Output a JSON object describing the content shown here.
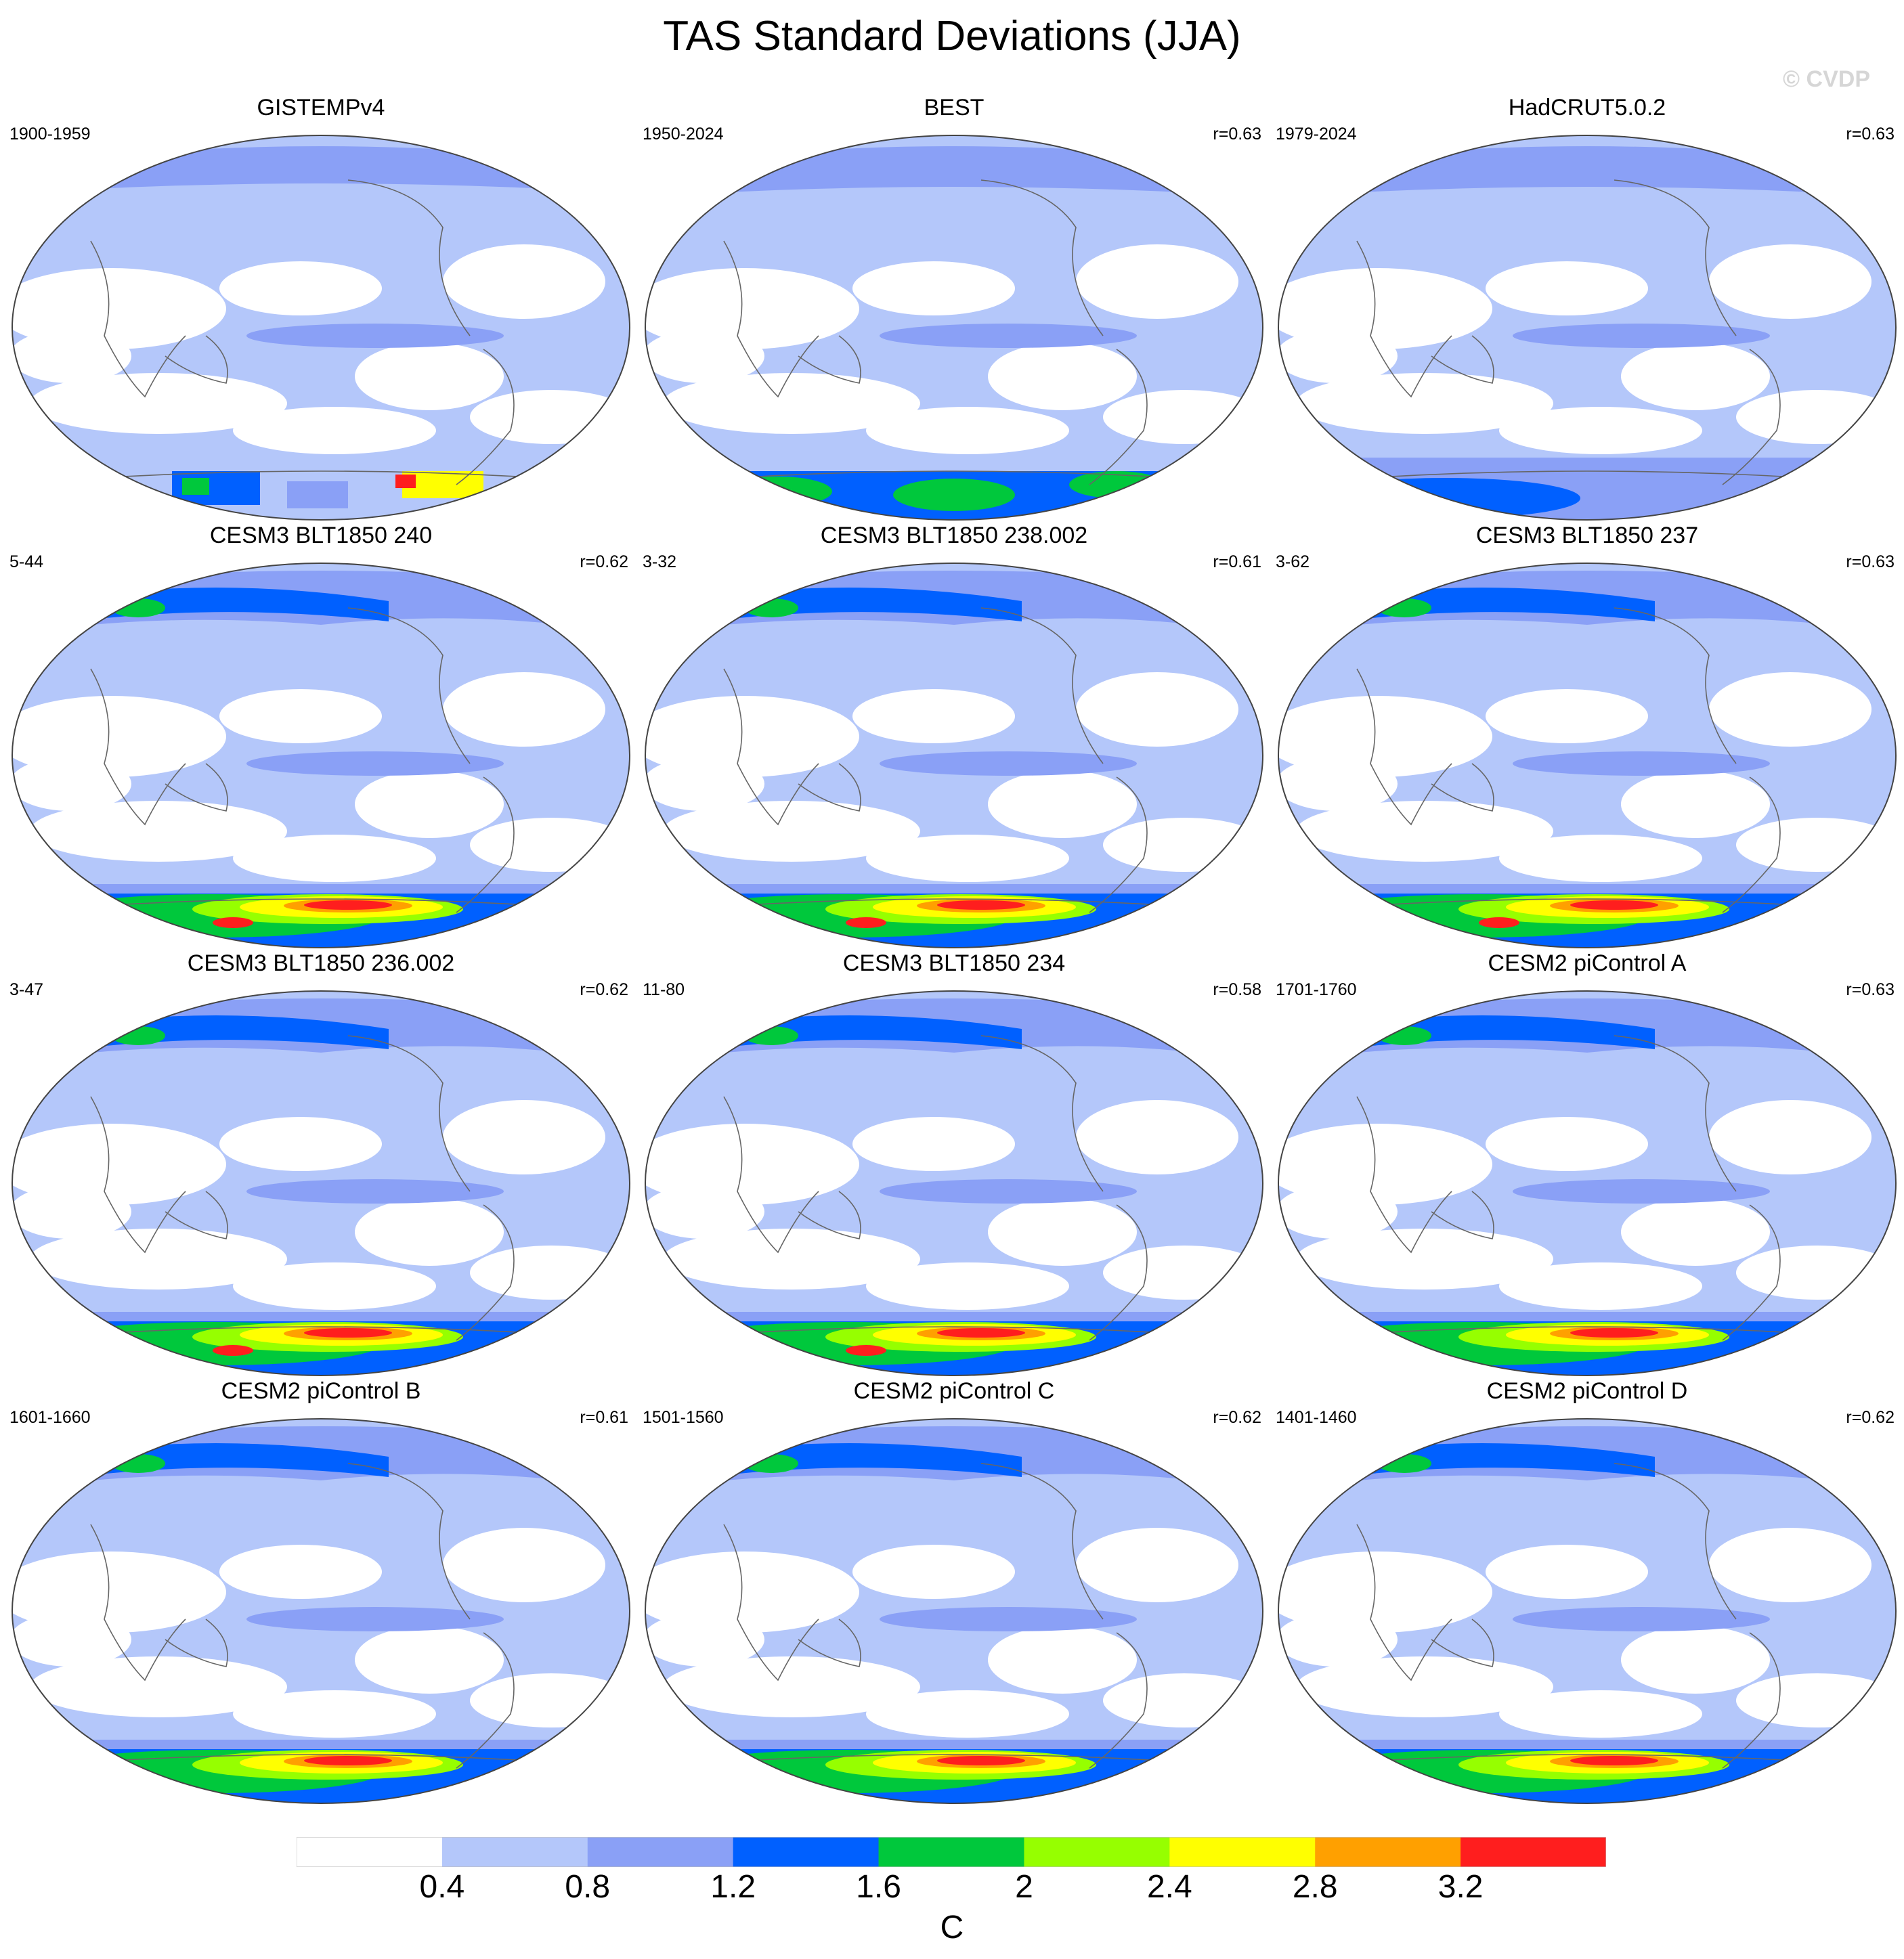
{
  "figure": {
    "title": "TAS Standard Deviations (JJA)",
    "credit": "© CVDP"
  },
  "colorbar": {
    "colors": [
      "#ffffff",
      "#b4c7fa",
      "#8aa0f6",
      "#0060ff",
      "#00c83c",
      "#96ff00",
      "#ffff00",
      "#ffa000",
      "#ff1e1e"
    ],
    "labels": [
      "0.4",
      "0.8",
      "1.2",
      "1.6",
      "2",
      "2.4",
      "2.8",
      "3.2"
    ],
    "unit": "C"
  },
  "panels": [
    {
      "title": "GISTEMPv4",
      "left": "1900-1959",
      "right": "",
      "style": "obs1"
    },
    {
      "title": "BEST",
      "left": "1950-2024",
      "right": "r=0.63",
      "style": "obs2"
    },
    {
      "title": "HadCRUT5.0.2",
      "left": "1979-2024",
      "right": "r=0.63",
      "style": "obs3"
    },
    {
      "title": "CESM3 BLT1850 240",
      "left": "5-44",
      "right": "r=0.62",
      "style": "model"
    },
    {
      "title": "CESM3 BLT1850 238.002",
      "left": "3-32",
      "right": "r=0.61",
      "style": "model"
    },
    {
      "title": "CESM3 BLT1850 237",
      "left": "3-62",
      "right": "r=0.63",
      "style": "model"
    },
    {
      "title": "CESM3 BLT1850 236.002",
      "left": "3-47",
      "right": "r=0.62",
      "style": "model"
    },
    {
      "title": "CESM3 BLT1850 234",
      "left": "11-80",
      "right": "r=0.58",
      "style": "model"
    },
    {
      "title": "CESM2 piControl A",
      "left": "1701-1760",
      "right": "r=0.63",
      "style": "model2"
    },
    {
      "title": "CESM2 piControl B",
      "left": "1601-1660",
      "right": "r=0.61",
      "style": "model2"
    },
    {
      "title": "CESM2 piControl C",
      "left": "1501-1560",
      "right": "r=0.62",
      "style": "model2"
    },
    {
      "title": "CESM2 piControl D",
      "left": "1401-1460",
      "right": "r=0.62",
      "style": "model2"
    }
  ]
}
